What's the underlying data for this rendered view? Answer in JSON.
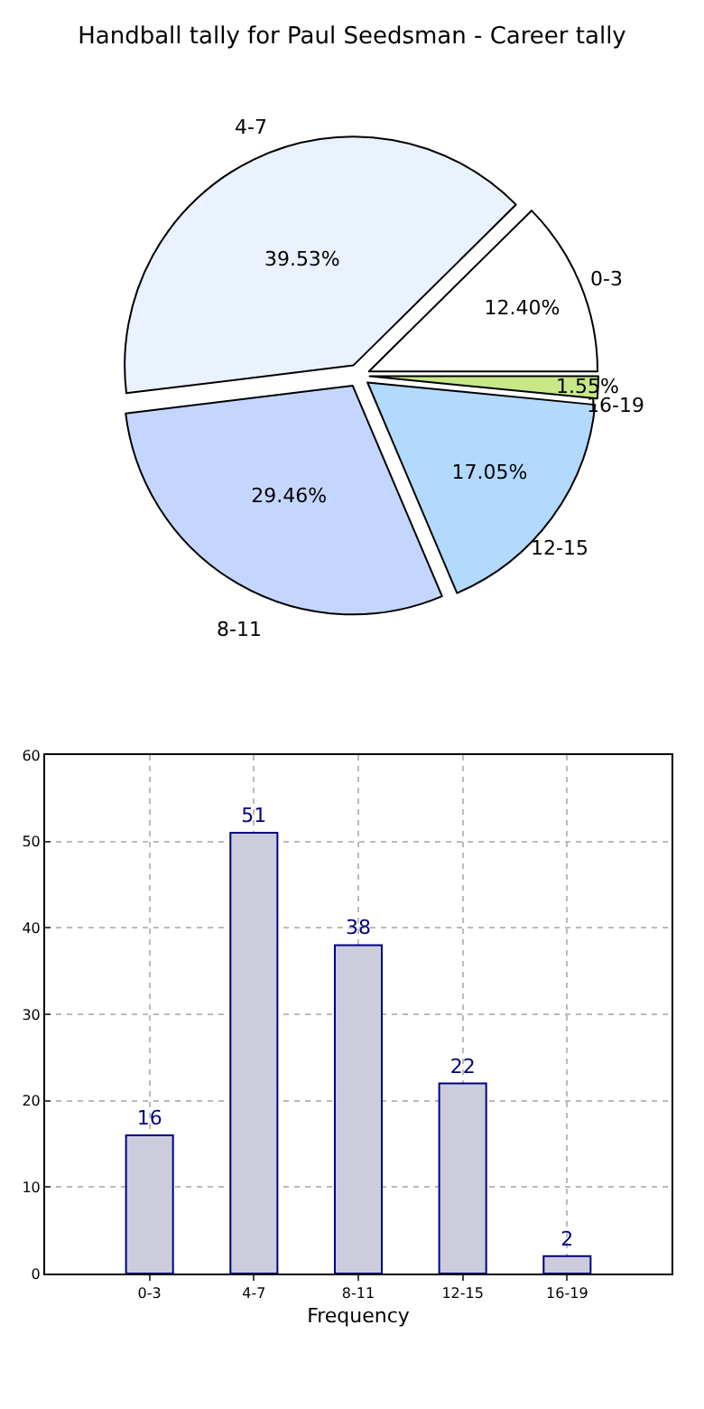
{
  "chart_data": [
    {
      "type": "pie",
      "title": "Handball tally for Paul Seedsman - Career tally",
      "categories": [
        "0-3",
        "4-7",
        "8-11",
        "12-15",
        "16-19"
      ],
      "values": [
        12.4,
        39.53,
        29.46,
        17.05,
        1.55
      ],
      "value_labels": [
        "12.40%",
        "39.53%",
        "29.46%",
        "17.05%",
        "1.55%"
      ],
      "colors": [
        "#ffffff",
        "#eaf1ff",
        "#c4d6ff",
        "#b3d9ff",
        "#c8e888"
      ]
    },
    {
      "type": "bar",
      "xlabel": "Frequency",
      "categories": [
        "0-3",
        "4-7",
        "8-11",
        "12-15",
        "16-19"
      ],
      "values": [
        16,
        51,
        38,
        22,
        2
      ],
      "color": "#ccccdd",
      "ylim": [
        0,
        60
      ],
      "yticks": [
        0,
        10,
        20,
        30,
        40,
        50,
        60
      ],
      "grid": true,
      "data_labels": true
    }
  ]
}
